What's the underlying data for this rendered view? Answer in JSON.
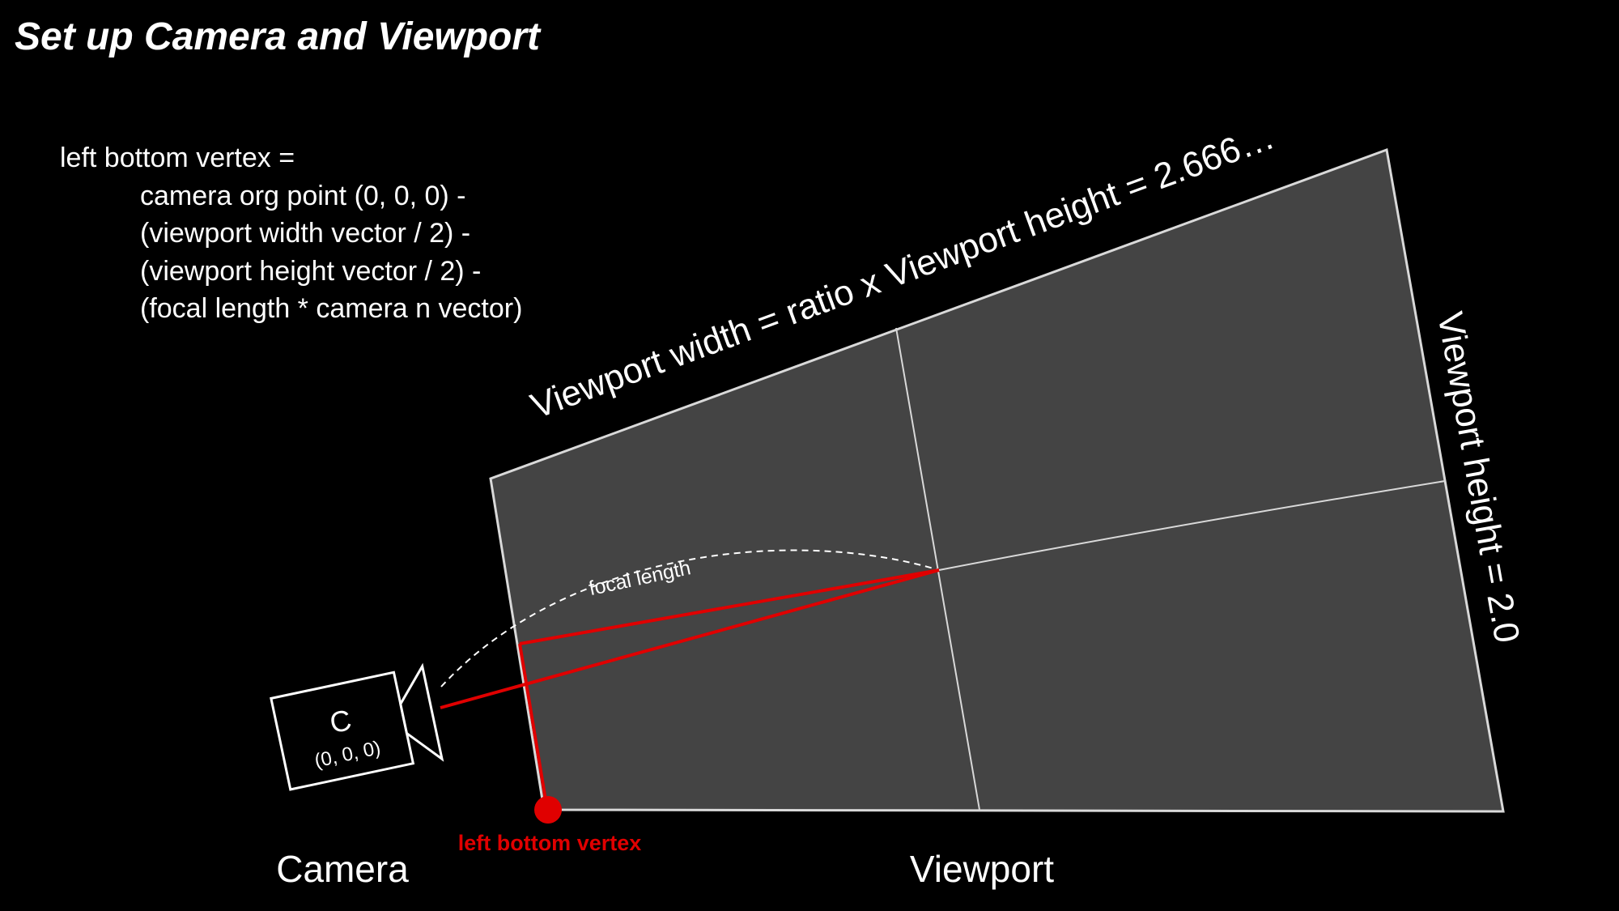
{
  "title": "Set up Camera and Viewport",
  "formula": {
    "first_line": "left bottom vertex =",
    "terms": [
      "camera org point (0, 0, 0) -",
      "(viewport width vector / 2) -",
      "(viewport height vector / 2) -",
      "(focal length * camera n vector)"
    ]
  },
  "labels": {
    "viewport_width": "Viewport width = ratio x Viewport height = 2.666…",
    "viewport_height": "Viewport height = 2.0",
    "focal_length": "focal length",
    "camera_letter": "C",
    "camera_coords": "(0, 0, 0)",
    "left_bottom_vertex": "left bottom vertex",
    "camera_caption": "Camera",
    "viewport_caption": "Viewport"
  },
  "colors": {
    "background": "#000000",
    "text": "#ffffff",
    "viewport_fill": "#444444",
    "outline": "#d9d9d9",
    "accent": "#e00000"
  }
}
